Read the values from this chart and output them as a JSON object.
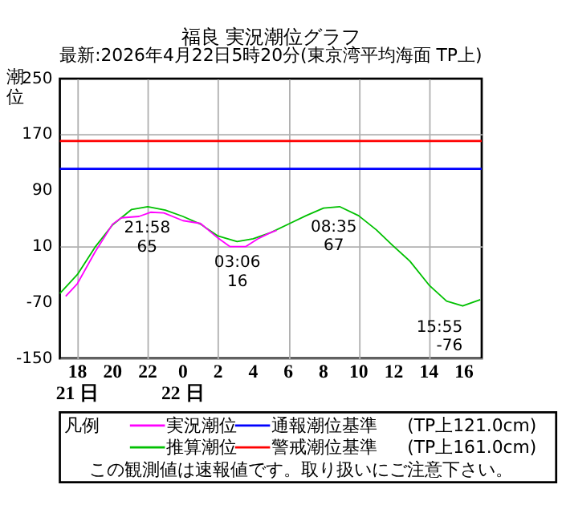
{
  "chart_data": {
    "type": "line",
    "title": "福良 実況潮位グラフ",
    "subtitle": "最新:2026年4月22日5時20分(東京湾平均海面 TP上)",
    "ylabel": "潮位",
    "legend_title": "凡例",
    "legend": "bottom",
    "grid": true,
    "marker": "none",
    "line_style": "solid",
    "xlim": [
      "2026-04-21T17:00",
      "2026-04-22T17:00"
    ],
    "xticks": [
      {
        "value": "2026-04-21T18:00",
        "label": "18\n21 日"
      },
      {
        "value": "2026-04-21T20:00",
        "label": "20"
      },
      {
        "value": "2026-04-21T22:00",
        "label": "22"
      },
      {
        "value": "2026-04-22T00:00",
        "label": "0\n22 日"
      },
      {
        "value": "2026-04-22T02:00",
        "label": "2"
      },
      {
        "value": "2026-04-22T04:00",
        "label": "4"
      },
      {
        "value": "2026-04-22T06:00",
        "label": "6"
      },
      {
        "value": "2026-04-22T08:00",
        "label": "8"
      },
      {
        "value": "2026-04-22T10:00",
        "label": "10"
      },
      {
        "value": "2026-04-22T12:00",
        "label": "12"
      },
      {
        "value": "2026-04-22T14:00",
        "label": "14"
      },
      {
        "value": "2026-04-22T16:00",
        "label": "16"
      }
    ],
    "ylim": [
      -150,
      250
    ],
    "yticks": [
      -150,
      -70,
      10,
      90,
      170,
      250
    ],
    "series": [
      {
        "name": "推算潮位",
        "color": "#00c000",
        "x": [
          "2026-04-21T17:00",
          "2026-04-21T18:00",
          "2026-04-21T19:00",
          "2026-04-21T20:00",
          "2026-04-21T21:05",
          "2026-04-21T22:00",
          "2026-04-21T23:00",
          "2026-04-22T00:00",
          "2026-04-22T01:00",
          "2026-04-22T02:00",
          "2026-04-22T03:05",
          "2026-04-22T04:00",
          "2026-04-22T05:00",
          "2026-04-22T06:05",
          "2026-04-22T07:00",
          "2026-04-22T08:00",
          "2026-04-22T08:55",
          "2026-04-22T10:00",
          "2026-04-22T11:00",
          "2026-04-22T11:55",
          "2026-04-22T12:55",
          "2026-04-22T14:00",
          "2026-04-22T15:00",
          "2026-04-22T15:55",
          "2026-04-22T16:55"
        ],
        "values": [
          -57,
          -30,
          9,
          41,
          63,
          67,
          62,
          53,
          42,
          25,
          17,
          21,
          30,
          43,
          54,
          65,
          67,
          54,
          34,
          12,
          -11,
          -45,
          -68,
          -75,
          -66
        ]
      },
      {
        "name": "実況潮位",
        "color": "#ff00ff",
        "x": [
          "2026-04-21T17:20",
          "2026-04-21T18:00",
          "2026-04-21T19:00",
          "2026-04-21T20:00",
          "2026-04-21T20:30",
          "2026-04-21T21:30",
          "2026-04-21T22:10",
          "2026-04-21T22:55",
          "2026-04-22T00:00",
          "2026-04-22T01:00",
          "2026-04-22T02:00",
          "2026-04-22T02:40",
          "2026-04-22T03:35",
          "2026-04-22T04:20",
          "2026-04-22T05:00",
          "2026-04-22T05:20"
        ],
        "values": [
          -61,
          -43,
          2,
          42,
          51,
          53,
          59,
          58,
          47,
          43,
          22,
          10,
          10,
          22,
          30,
          33
        ]
      }
    ],
    "ref_lines": [
      {
        "axis": "y",
        "value": 121,
        "label": "通報潮位基準",
        "color": "#0000ff"
      },
      {
        "axis": "y",
        "value": 161,
        "label": "警戒潮位基準",
        "color": "#ff0000"
      }
    ],
    "annotations": [
      {
        "text": "21:58\n65",
        "x": "2026-04-21T21:58",
        "y": 65
      },
      {
        "text": "03:06\n16",
        "x": "2026-04-22T03:06",
        "y": 16
      },
      {
        "text": "08:35\n67",
        "x": "2026-04-22T08:35",
        "y": 67
      },
      {
        "text": "15:55\n-76",
        "x": "2026-04-22T15:55",
        "y": -76
      },
      "(TP上121.0cm)",
      "(TP上161.0cm)",
      "この観測値は速報値です。取り扱いにご注意下さい。"
    ]
  }
}
